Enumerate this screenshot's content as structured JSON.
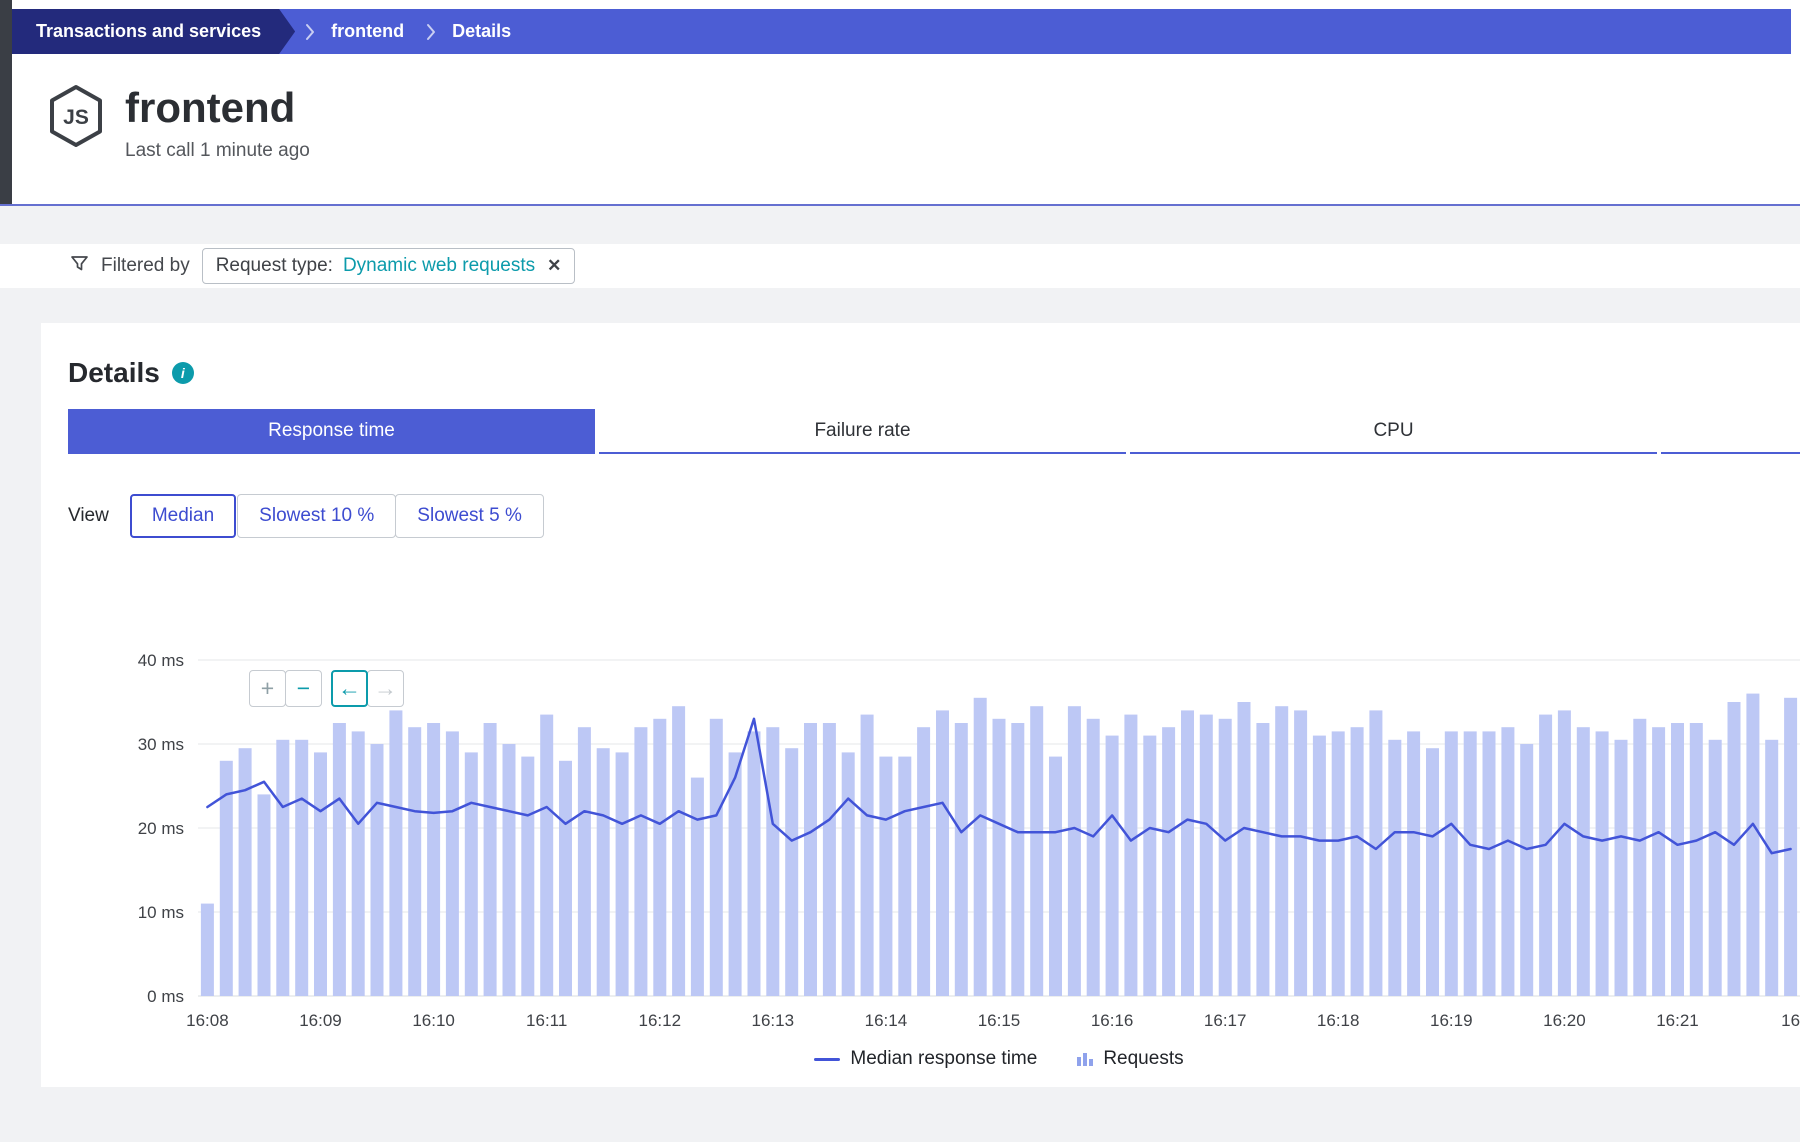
{
  "breadcrumb": {
    "items": [
      {
        "label": "Transactions and services"
      },
      {
        "label": "frontend"
      },
      {
        "label": "Details"
      }
    ]
  },
  "header": {
    "title": "frontend",
    "subtitle": "Last call 1 minute ago",
    "tech_icon": "nodejs-hexagon",
    "tech_icon_text": "JS"
  },
  "filter": {
    "label": "Filtered by",
    "chip": {
      "key": "Request type:",
      "value": "Dynamic web requests"
    }
  },
  "details": {
    "heading": "Details",
    "tabs": [
      {
        "label": "Response time",
        "active": true
      },
      {
        "label": "Failure rate",
        "active": false
      },
      {
        "label": "CPU",
        "active": false
      }
    ],
    "view": {
      "label": "View",
      "options": [
        {
          "label": "Median",
          "selected": true
        },
        {
          "label": "Slowest 10 %",
          "selected": false
        },
        {
          "label": "Slowest 5 %",
          "selected": false
        }
      ]
    }
  },
  "icons": {
    "zoom_in": "+",
    "zoom_out": "−",
    "pan_left": "←",
    "pan_right": "→",
    "close": "✕",
    "info": "i"
  },
  "chart_data": {
    "type": "bar",
    "title": "",
    "xlabel": "",
    "ylabel": "ms",
    "ylim": [
      0,
      40
    ],
    "y_ticks": [
      "0 ms",
      "10 ms",
      "20 ms",
      "30 ms",
      "40 ms"
    ],
    "x_tick_labels": [
      "16:08",
      "16:09",
      "16:10",
      "16:11",
      "16:12",
      "16:13",
      "16:14",
      "16:15",
      "16:16",
      "16:17",
      "16:18",
      "16:19",
      "16:20",
      "16:21",
      "16"
    ],
    "bars_per_tick": 6,
    "grid": true,
    "legend_position": "bottom-center",
    "series": [
      {
        "name": "Requests",
        "type": "bar",
        "color": "#bdc8f5",
        "values": [
          11,
          28,
          29.5,
          24,
          30.5,
          30.5,
          29,
          32.5,
          31.5,
          30,
          34,
          32,
          32.5,
          31.5,
          29,
          32.5,
          30,
          28.5,
          33.5,
          28,
          32,
          29.5,
          29,
          32,
          33,
          34.5,
          26,
          33,
          29,
          31.5,
          32,
          29.5,
          32.5,
          32.5,
          29,
          33.5,
          28.5,
          28.5,
          32,
          34,
          32.5,
          35.5,
          33,
          32.5,
          34.5,
          28.5,
          34.5,
          33,
          31,
          33.5,
          31,
          32,
          34,
          33.5,
          33,
          35,
          32.5,
          34.5,
          34,
          31,
          31.5,
          32,
          34,
          30.5,
          31.5,
          29.5,
          31.5,
          31.5,
          31.5,
          32,
          30,
          33.5,
          34,
          32,
          31.5,
          30.5,
          33,
          32,
          32.5,
          32.5,
          30.5,
          35,
          36,
          30.5,
          35.5
        ]
      },
      {
        "name": "Median response time",
        "type": "line",
        "color": "#4254d8",
        "unit": "ms",
        "values": [
          22.5,
          24,
          24.5,
          25.5,
          22.5,
          23.5,
          22,
          23.5,
          20.5,
          23,
          22.5,
          22,
          21.8,
          22,
          23,
          22.5,
          22,
          21.5,
          22.5,
          20.5,
          22,
          21.5,
          20.5,
          21.5,
          20.5,
          22,
          21,
          21.5,
          26,
          33,
          20.5,
          18.5,
          19.5,
          21,
          23.5,
          21.5,
          21,
          22,
          22.5,
          23,
          19.5,
          21.5,
          20.5,
          19.5,
          19.5,
          19.5,
          20,
          19,
          21.5,
          18.5,
          20,
          19.5,
          21,
          20.5,
          18.5,
          20,
          19.5,
          19,
          19,
          18.5,
          18.5,
          19,
          17.5,
          19.5,
          19.5,
          19,
          20.5,
          18,
          17.5,
          18.5,
          17.5,
          18,
          20.5,
          19,
          18.5,
          19,
          18.5,
          19.5,
          18,
          18.5,
          19.5,
          18,
          20.5,
          17,
          17.5
        ]
      }
    ],
    "legend": [
      {
        "label": "Median response time",
        "marker": "line",
        "color": "#4254d8"
      },
      {
        "label": "Requests",
        "marker": "bars",
        "color": "#bdc8f5"
      }
    ]
  },
  "colors": {
    "accent_blue": "#4c5dd4",
    "navy_crumb": "#232a7c",
    "teal": "#0c9bab",
    "bar_fill": "#bdc8f5",
    "line": "#4254d8",
    "page_gray": "#f1f2f4",
    "gridline": "#e5e7ea"
  }
}
